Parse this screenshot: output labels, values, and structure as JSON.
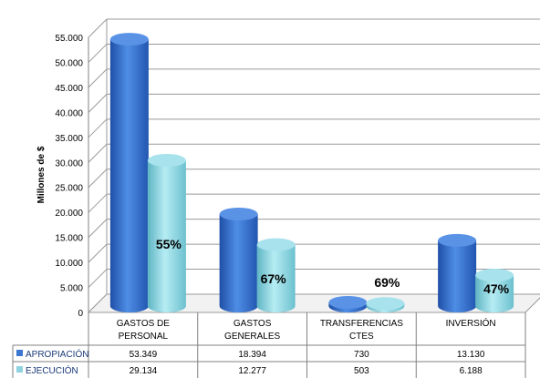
{
  "chart_data": {
    "type": "bar",
    "ylabel": "Millones de $",
    "ylim": [
      0,
      55000
    ],
    "yticks": [
      "0",
      "5.000",
      "10.000",
      "15.000",
      "20.000",
      "25.000",
      "30.000",
      "35.000",
      "40.000",
      "45.000",
      "50.000",
      "55.000"
    ],
    "categories": [
      [
        "GASTOS DE",
        "PERSONAL"
      ],
      [
        "GASTOS",
        "GENERALES"
      ],
      [
        "TRANSFERENCIAS",
        "CTES"
      ],
      [
        "INVERSIÓN"
      ]
    ],
    "series": [
      {
        "name": "APROPIACIÓN",
        "color": "#3b76d1",
        "values": [
          53349,
          18394,
          730,
          13130
        ],
        "labels": [
          "53.349",
          "18.394",
          "730",
          "13.130"
        ]
      },
      {
        "name": "EJECUCIÓN",
        "color": "#8fd3e0",
        "values": [
          29134,
          12277,
          503,
          6188
        ],
        "labels": [
          "29.134",
          "12.277",
          "503",
          "6.188"
        ]
      }
    ],
    "execution_percent": [
      "55%",
      "67%",
      "69%",
      "47%"
    ],
    "grid": true,
    "legend": "table-left",
    "chart_style": "3d-cylinder"
  }
}
